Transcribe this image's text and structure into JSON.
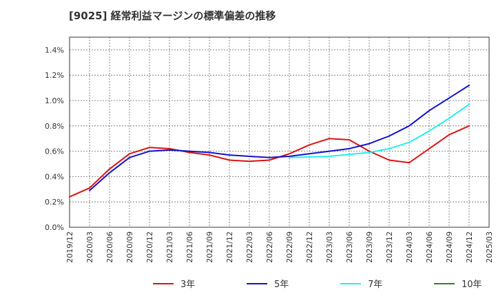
{
  "chart_data": {
    "type": "line",
    "title": "[9025]  経常利益マージンの標準偏差の推移",
    "xlabel": "",
    "ylabel": "",
    "x_ticks": [
      "2019/12",
      "2020/03",
      "2020/06",
      "2020/09",
      "2020/12",
      "2021/03",
      "2021/06",
      "2021/09",
      "2021/12",
      "2022/03",
      "2022/06",
      "2022/09",
      "2022/12",
      "2023/03",
      "2023/06",
      "2023/09",
      "2023/12",
      "2024/03",
      "2024/06",
      "2024/09",
      "2024/12",
      "2025/03"
    ],
    "y_ticks": [
      "0.0%",
      "0.2%",
      "0.4%",
      "0.6%",
      "0.8%",
      "1.0%",
      "1.2%",
      "1.4%"
    ],
    "ylim": [
      0,
      1.5
    ],
    "y_unit": "%",
    "grid": true,
    "legend_position": "bottom",
    "series": [
      {
        "name": "3年",
        "color": "#dd1111",
        "points": [
          [
            "2019/12",
            0.24
          ],
          [
            "2020/03",
            0.31
          ],
          [
            "2020/06",
            0.46
          ],
          [
            "2020/09",
            0.58
          ],
          [
            "2020/12",
            0.63
          ],
          [
            "2021/03",
            0.62
          ],
          [
            "2021/06",
            0.59
          ],
          [
            "2021/09",
            0.57
          ],
          [
            "2021/12",
            0.53
          ],
          [
            "2022/03",
            0.52
          ],
          [
            "2022/06",
            0.53
          ],
          [
            "2022/09",
            0.58
          ],
          [
            "2022/12",
            0.65
          ],
          [
            "2023/03",
            0.7
          ],
          [
            "2023/06",
            0.69
          ],
          [
            "2023/09",
            0.6
          ],
          [
            "2023/12",
            0.53
          ],
          [
            "2024/03",
            0.51
          ],
          [
            "2024/06",
            0.62
          ],
          [
            "2024/09",
            0.73
          ],
          [
            "2024/12",
            0.8
          ]
        ]
      },
      {
        "name": "5年",
        "color": "#1111cc",
        "points": [
          [
            "2020/03",
            0.29
          ],
          [
            "2020/06",
            0.43
          ],
          [
            "2020/09",
            0.55
          ],
          [
            "2020/12",
            0.6
          ],
          [
            "2021/03",
            0.61
          ],
          [
            "2021/06",
            0.6
          ],
          [
            "2021/09",
            0.59
          ],
          [
            "2021/12",
            0.57
          ],
          [
            "2022/03",
            0.56
          ],
          [
            "2022/06",
            0.55
          ],
          [
            "2022/09",
            0.56
          ],
          [
            "2022/12",
            0.58
          ],
          [
            "2023/03",
            0.6
          ],
          [
            "2023/06",
            0.62
          ],
          [
            "2023/09",
            0.66
          ],
          [
            "2023/12",
            0.72
          ],
          [
            "2024/03",
            0.8
          ],
          [
            "2024/06",
            0.92
          ],
          [
            "2024/09",
            1.02
          ],
          [
            "2024/12",
            1.12
          ]
        ]
      },
      {
        "name": "7年",
        "color": "#22eeee",
        "points": [
          [
            "2022/09",
            0.55
          ],
          [
            "2022/12",
            0.555
          ],
          [
            "2023/03",
            0.56
          ],
          [
            "2023/06",
            0.575
          ],
          [
            "2023/09",
            0.59
          ],
          [
            "2023/12",
            0.62
          ],
          [
            "2024/03",
            0.67
          ],
          [
            "2024/06",
            0.76
          ],
          [
            "2024/09",
            0.86
          ],
          [
            "2024/12",
            0.97
          ]
        ]
      },
      {
        "name": "10年",
        "color": "#228822",
        "points": []
      }
    ]
  }
}
